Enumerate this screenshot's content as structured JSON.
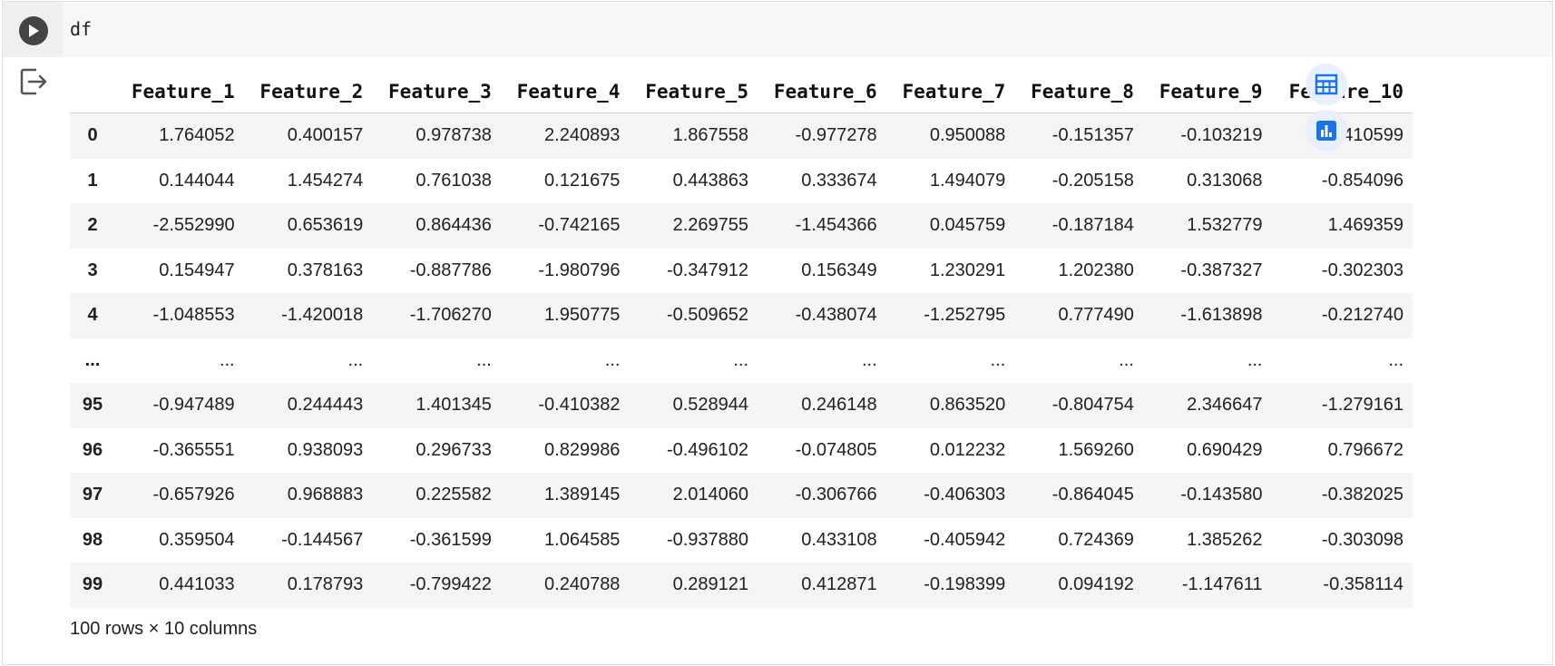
{
  "code": {
    "text": "df"
  },
  "icons": {
    "run": "play-circle-icon",
    "output": "output-arrow-icon",
    "table_view": "table-grid-icon",
    "chart_view": "bar-chart-icon"
  },
  "colors": {
    "accent": "#1a73e8",
    "header_bg": "#f7f7f7",
    "stripe": "#f5f5f5"
  },
  "table": {
    "columns": [
      "Feature_1",
      "Feature_2",
      "Feature_3",
      "Feature_4",
      "Feature_5",
      "Feature_6",
      "Feature_7",
      "Feature_8",
      "Feature_9",
      "Feature_10"
    ],
    "rows": [
      {
        "index": "0",
        "cells": [
          "1.764052",
          "0.400157",
          "0.978738",
          "2.240893",
          "1.867558",
          "-0.977278",
          "0.950088",
          "-0.151357",
          "-0.103219",
          "0.410599"
        ]
      },
      {
        "index": "1",
        "cells": [
          "0.144044",
          "1.454274",
          "0.761038",
          "0.121675",
          "0.443863",
          "0.333674",
          "1.494079",
          "-0.205158",
          "0.313068",
          "-0.854096"
        ]
      },
      {
        "index": "2",
        "cells": [
          "-2.552990",
          "0.653619",
          "0.864436",
          "-0.742165",
          "2.269755",
          "-1.454366",
          "0.045759",
          "-0.187184",
          "1.532779",
          "1.469359"
        ]
      },
      {
        "index": "3",
        "cells": [
          "0.154947",
          "0.378163",
          "-0.887786",
          "-1.980796",
          "-0.347912",
          "0.156349",
          "1.230291",
          "1.202380",
          "-0.387327",
          "-0.302303"
        ]
      },
      {
        "index": "4",
        "cells": [
          "-1.048553",
          "-1.420018",
          "-1.706270",
          "1.950775",
          "-0.509652",
          "-0.438074",
          "-1.252795",
          "0.777490",
          "-1.613898",
          "-0.212740"
        ]
      },
      {
        "index": "...",
        "cells": [
          "...",
          "...",
          "...",
          "...",
          "...",
          "...",
          "...",
          "...",
          "...",
          "..."
        ]
      },
      {
        "index": "95",
        "cells": [
          "-0.947489",
          "0.244443",
          "1.401345",
          "-0.410382",
          "0.528944",
          "0.246148",
          "0.863520",
          "-0.804754",
          "2.346647",
          "-1.279161"
        ]
      },
      {
        "index": "96",
        "cells": [
          "-0.365551",
          "0.938093",
          "0.296733",
          "0.829986",
          "-0.496102",
          "-0.074805",
          "0.012232",
          "1.569260",
          "0.690429",
          "0.796672"
        ]
      },
      {
        "index": "97",
        "cells": [
          "-0.657926",
          "0.968883",
          "0.225582",
          "1.389145",
          "2.014060",
          "-0.306766",
          "-0.406303",
          "-0.864045",
          "-0.143580",
          "-0.382025"
        ]
      },
      {
        "index": "98",
        "cells": [
          "0.359504",
          "-0.144567",
          "-0.361599",
          "1.064585",
          "-0.937880",
          "0.433108",
          "-0.405942",
          "0.724369",
          "1.385262",
          "-0.303098"
        ]
      },
      {
        "index": "99",
        "cells": [
          "0.441033",
          "0.178793",
          "-0.799422",
          "0.240788",
          "0.289121",
          "0.412871",
          "-0.198399",
          "0.094192",
          "-1.147611",
          "-0.358114"
        ]
      }
    ],
    "shape": "100 rows × 10 columns"
  }
}
